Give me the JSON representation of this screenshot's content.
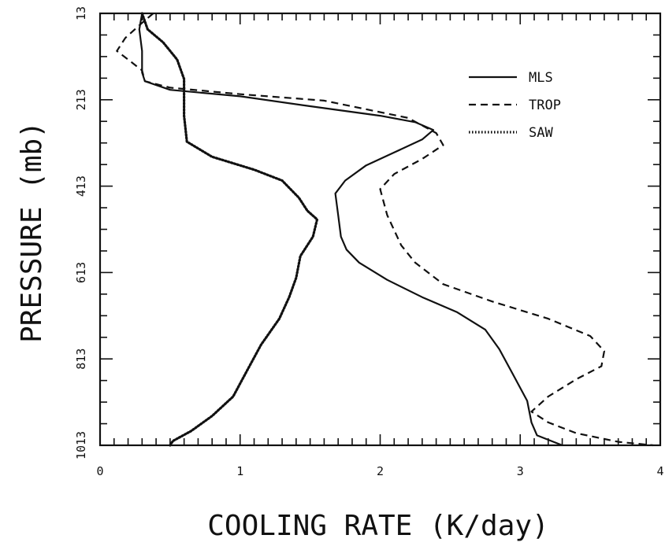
{
  "chart_data": {
    "type": "line",
    "title": "",
    "xlabel": "COOLING RATE (K/day)",
    "ylabel": "PRESSURE (mb)",
    "xlim": [
      0,
      4
    ],
    "ylim": [
      13,
      1013
    ],
    "y_inverted": true,
    "x_ticks": [
      "0",
      "1",
      "2",
      "3",
      "4"
    ],
    "y_ticks": [
      "13",
      "213",
      "413",
      "613",
      "813",
      "1013"
    ],
    "legend_position": "top-right",
    "series": [
      {
        "name": "MLS",
        "style": "solid",
        "points": [
          [
            0.3,
            13
          ],
          [
            0.28,
            50
          ],
          [
            0.3,
            100
          ],
          [
            0.3,
            150
          ],
          [
            0.32,
            170
          ],
          [
            0.5,
            190
          ],
          [
            1.0,
            205
          ],
          [
            1.5,
            228
          ],
          [
            2.0,
            250
          ],
          [
            2.25,
            265
          ],
          [
            2.38,
            283
          ],
          [
            2.3,
            305
          ],
          [
            2.1,
            335
          ],
          [
            1.9,
            365
          ],
          [
            1.75,
            400
          ],
          [
            1.68,
            430
          ],
          [
            1.7,
            480
          ],
          [
            1.72,
            530
          ],
          [
            1.76,
            560
          ],
          [
            1.85,
            590
          ],
          [
            2.05,
            630
          ],
          [
            2.3,
            670
          ],
          [
            2.55,
            705
          ],
          [
            2.75,
            745
          ],
          [
            2.85,
            790
          ],
          [
            2.95,
            850
          ],
          [
            3.05,
            910
          ],
          [
            3.08,
            960
          ],
          [
            3.12,
            990
          ],
          [
            3.3,
            1013
          ]
        ]
      },
      {
        "name": "TROP",
        "style": "dashed",
        "points": [
          [
            0.38,
            13
          ],
          [
            0.3,
            35
          ],
          [
            0.18,
            70
          ],
          [
            0.12,
            100
          ],
          [
            0.2,
            120
          ],
          [
            0.3,
            145
          ],
          [
            0.32,
            170
          ],
          [
            0.5,
            185
          ],
          [
            1.0,
            200
          ],
          [
            1.6,
            215
          ],
          [
            2.2,
            255
          ],
          [
            2.4,
            290
          ],
          [
            2.45,
            318
          ],
          [
            2.3,
            350
          ],
          [
            2.1,
            385
          ],
          [
            2.0,
            420
          ],
          [
            2.05,
            480
          ],
          [
            2.15,
            550
          ],
          [
            2.25,
            590
          ],
          [
            2.45,
            640
          ],
          [
            2.8,
            680
          ],
          [
            3.2,
            720
          ],
          [
            3.5,
            760
          ],
          [
            3.6,
            795
          ],
          [
            3.58,
            830
          ],
          [
            3.4,
            860
          ],
          [
            3.2,
            900
          ],
          [
            3.08,
            935
          ],
          [
            3.2,
            960
          ],
          [
            3.4,
            985
          ],
          [
            3.7,
            1005
          ],
          [
            3.95,
            1013
          ]
        ]
      },
      {
        "name": "SAW",
        "style": "dotted",
        "points": [
          [
            0.3,
            13
          ],
          [
            0.34,
            50
          ],
          [
            0.45,
            80
          ],
          [
            0.55,
            120
          ],
          [
            0.6,
            165
          ],
          [
            0.6,
            200
          ],
          [
            0.6,
            250
          ],
          [
            0.62,
            310
          ],
          [
            0.8,
            345
          ],
          [
            1.1,
            375
          ],
          [
            1.3,
            400
          ],
          [
            1.42,
            440
          ],
          [
            1.48,
            470
          ],
          [
            1.55,
            490
          ],
          [
            1.52,
            530
          ],
          [
            1.43,
            575
          ],
          [
            1.4,
            625
          ],
          [
            1.35,
            670
          ],
          [
            1.28,
            720
          ],
          [
            1.15,
            780
          ],
          [
            1.05,
            840
          ],
          [
            0.95,
            900
          ],
          [
            0.8,
            945
          ],
          [
            0.65,
            980
          ],
          [
            0.52,
            1003
          ],
          [
            0.5,
            1013
          ]
        ]
      }
    ]
  }
}
